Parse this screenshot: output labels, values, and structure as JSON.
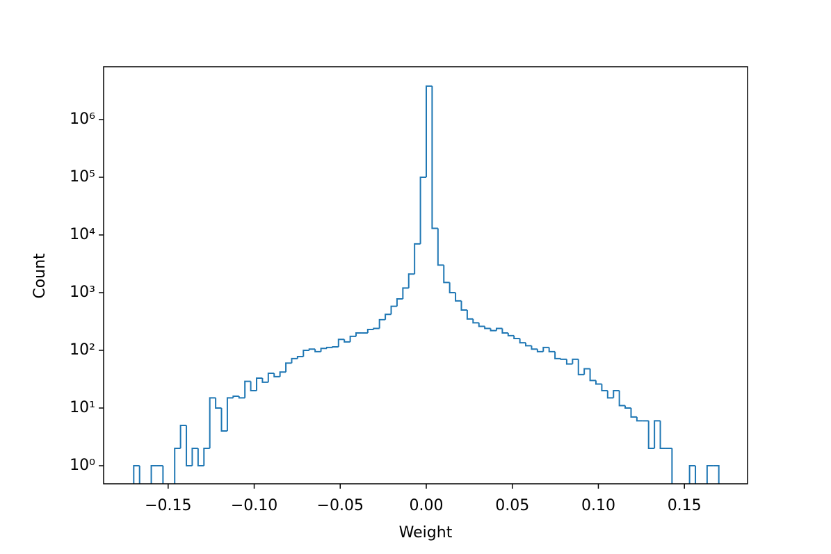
{
  "chart_data": {
    "type": "histogram",
    "xlabel": "Weight",
    "ylabel": "Count",
    "color": "#1f77b4",
    "log_y": true,
    "bins": [
      -0.17,
      -0.1666,
      -0.1632,
      -0.1598,
      -0.1564,
      -0.153,
      -0.1496,
      -0.1462,
      -0.1428,
      -0.1394,
      -0.136,
      -0.1326,
      -0.1292,
      -0.1258,
      -0.1224,
      -0.119,
      -0.1156,
      -0.1122,
      -0.1088,
      -0.1054,
      -0.102,
      -0.0986,
      -0.0952,
      -0.0918,
      -0.0884,
      -0.085,
      -0.0816,
      -0.0782,
      -0.0748,
      -0.0714,
      -0.068,
      -0.0646,
      -0.0612,
      -0.0578,
      -0.0544,
      -0.051,
      -0.0476,
      -0.0442,
      -0.0408,
      -0.0374,
      -0.034,
      -0.0306,
      -0.0272,
      -0.0238,
      -0.0204,
      -0.017,
      -0.0136,
      -0.0102,
      -0.0068,
      -0.0034,
      0,
      0.0034,
      0.0068,
      0.0102,
      0.0136,
      0.017,
      0.0204,
      0.0238,
      0.0272,
      0.0306,
      0.034,
      0.0374,
      0.0408,
      0.0442,
      0.0476,
      0.051,
      0.0544,
      0.0578,
      0.0612,
      0.0646,
      0.068,
      0.0714,
      0.0748,
      0.0782,
      0.0816,
      0.085,
      0.0884,
      0.0918,
      0.0952,
      0.0986,
      0.102,
      0.1054,
      0.1088,
      0.1122,
      0.1156,
      0.119,
      0.1224,
      0.1258,
      0.1292,
      0.1326,
      0.136,
      0.1394,
      0.1428,
      0.1462,
      0.1496,
      0.153,
      0.1564,
      0.1598,
      0.1632,
      0.1666,
      0.17
    ],
    "values": [
      1,
      0,
      0,
      1,
      1,
      0,
      0,
      2,
      5,
      1,
      2,
      1,
      2,
      15,
      10,
      4,
      15,
      16,
      15,
      29,
      20,
      33,
      28,
      40,
      35,
      42,
      60,
      72,
      78,
      100,
      105,
      95,
      108,
      112,
      115,
      155,
      140,
      175,
      200,
      200,
      230,
      240,
      340,
      420,
      580,
      780,
      1200,
      2100,
      7000,
      100000,
      3800000,
      13000,
      3000,
      1500,
      1000,
      720,
      500,
      350,
      300,
      260,
      240,
      220,
      240,
      200,
      180,
      160,
      135,
      120,
      105,
      95,
      112,
      95,
      72,
      70,
      58,
      70,
      38,
      48,
      30,
      26,
      20,
      15,
      20,
      11,
      10,
      7,
      6,
      6,
      2,
      6,
      2,
      2,
      0,
      0,
      0,
      1,
      0,
      0,
      1,
      1
    ],
    "xlim": [
      -0.1875,
      0.1867
    ],
    "ylim": [
      0.486,
      8240000
    ],
    "xticks": [
      {
        "value": -0.15,
        "label": "−0.15"
      },
      {
        "value": -0.1,
        "label": "−0.10"
      },
      {
        "value": -0.05,
        "label": "−0.05"
      },
      {
        "value": 0,
        "label": "0.00"
      },
      {
        "value": 0.05,
        "label": "0.05"
      },
      {
        "value": 0.1,
        "label": "0.10"
      },
      {
        "value": 0.15,
        "label": "0.15"
      }
    ],
    "yticks": [
      {
        "value": 1,
        "label": "10⁰"
      },
      {
        "value": 10,
        "label": "10¹"
      },
      {
        "value": 100,
        "label": "10²"
      },
      {
        "value": 1000,
        "label": "10³"
      },
      {
        "value": 10000,
        "label": "10⁴"
      },
      {
        "value": 100000,
        "label": "10⁵"
      },
      {
        "value": 1000000,
        "label": "10⁶"
      }
    ]
  }
}
